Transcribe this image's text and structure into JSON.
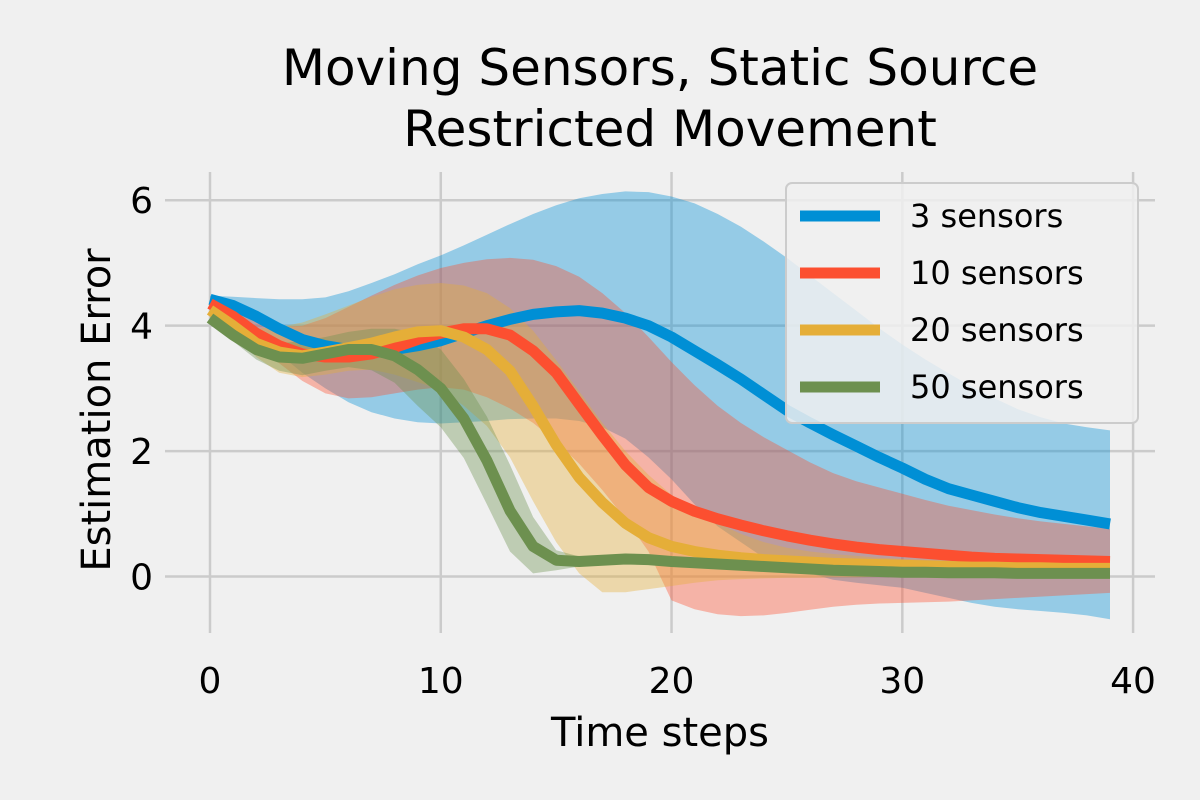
{
  "chart_data": {
    "type": "line",
    "title_lines": [
      "Moving Sensors, Static Source",
      "Restricted Movement"
    ],
    "xlabel": "Time steps",
    "ylabel": "Estimation Error",
    "xlim": [
      -1.95,
      40.95
    ],
    "ylim": [
      -0.9,
      6.45
    ],
    "xticks": [
      0,
      10,
      20,
      30,
      40
    ],
    "yticks": [
      0,
      2,
      4,
      6
    ],
    "grid": true,
    "legend_position": "top-right",
    "x": [
      0,
      1,
      2,
      3,
      4,
      5,
      6,
      7,
      8,
      9,
      10,
      11,
      12,
      13,
      14,
      15,
      16,
      17,
      18,
      19,
      20,
      21,
      22,
      23,
      24,
      25,
      26,
      27,
      28,
      29,
      30,
      31,
      32,
      33,
      34,
      35,
      36,
      37,
      38,
      39
    ],
    "series": [
      {
        "name": "3 sensors",
        "color": "#008fd5",
        "mean": [
          4.42,
          4.32,
          4.15,
          3.95,
          3.78,
          3.68,
          3.62,
          3.6,
          3.62,
          3.68,
          3.76,
          3.88,
          4.0,
          4.1,
          4.18,
          4.22,
          4.24,
          4.2,
          4.12,
          4.0,
          3.82,
          3.6,
          3.38,
          3.15,
          2.9,
          2.65,
          2.45,
          2.26,
          2.08,
          1.9,
          1.73,
          1.55,
          1.4,
          1.3,
          1.2,
          1.1,
          1.02,
          0.96,
          0.9,
          0.84
        ],
        "upper": [
          4.48,
          4.46,
          4.44,
          4.42,
          4.42,
          4.45,
          4.55,
          4.68,
          4.82,
          4.98,
          5.12,
          5.28,
          5.45,
          5.62,
          5.78,
          5.92,
          6.03,
          6.1,
          6.14,
          6.13,
          6.06,
          5.95,
          5.78,
          5.58,
          5.34,
          5.08,
          4.8,
          4.52,
          4.24,
          3.96,
          3.7,
          3.46,
          3.24,
          3.03,
          2.84,
          2.67,
          2.54,
          2.44,
          2.38,
          2.33
        ],
        "lower": [
          4.36,
          4.18,
          3.88,
          3.55,
          3.25,
          3.0,
          2.78,
          2.62,
          2.52,
          2.46,
          2.44,
          2.46,
          2.48,
          2.51,
          2.52,
          2.52,
          2.48,
          2.38,
          2.2,
          1.9,
          1.55,
          1.15,
          0.8,
          0.55,
          0.3,
          0.15,
          0.05,
          -0.05,
          -0.1,
          -0.14,
          -0.18,
          -0.26,
          -0.34,
          -0.42,
          -0.48,
          -0.52,
          -0.55,
          -0.58,
          -0.62,
          -0.68
        ]
      },
      {
        "name": "10 sensors",
        "color": "#fc4f30",
        "mean": [
          4.35,
          4.15,
          3.88,
          3.68,
          3.55,
          3.5,
          3.5,
          3.55,
          3.65,
          3.78,
          3.88,
          3.95,
          3.95,
          3.85,
          3.6,
          3.25,
          2.75,
          2.25,
          1.78,
          1.42,
          1.2,
          1.04,
          0.92,
          0.82,
          0.73,
          0.65,
          0.58,
          0.52,
          0.47,
          0.43,
          0.4,
          0.37,
          0.34,
          0.31,
          0.29,
          0.28,
          0.27,
          0.26,
          0.25,
          0.24
        ],
        "upper": [
          4.4,
          4.25,
          4.08,
          3.98,
          4.0,
          4.12,
          4.3,
          4.48,
          4.65,
          4.8,
          4.92,
          5.0,
          5.06,
          5.08,
          5.05,
          4.95,
          4.78,
          4.52,
          4.2,
          3.82,
          3.42,
          3.05,
          2.72,
          2.45,
          2.22,
          2.02,
          1.82,
          1.65,
          1.52,
          1.42,
          1.32,
          1.22,
          1.13,
          1.06,
          0.99,
          0.93,
          0.88,
          0.84,
          0.8,
          0.76
        ],
        "lower": [
          4.3,
          4.05,
          3.7,
          3.4,
          3.12,
          2.92,
          2.84,
          2.86,
          2.92,
          2.98,
          3.02,
          2.98,
          2.86,
          2.68,
          2.45,
          2.15,
          1.8,
          1.38,
          0.92,
          0.4,
          -0.38,
          -0.52,
          -0.6,
          -0.63,
          -0.62,
          -0.58,
          -0.53,
          -0.48,
          -0.45,
          -0.43,
          -0.42,
          -0.41,
          -0.4,
          -0.38,
          -0.36,
          -0.34,
          -0.32,
          -0.3,
          -0.28,
          -0.26
        ]
      },
      {
        "name": "20 sensors",
        "color": "#e5ae38",
        "mean": [
          4.25,
          4.0,
          3.72,
          3.58,
          3.52,
          3.58,
          3.65,
          3.72,
          3.82,
          3.9,
          3.92,
          3.82,
          3.62,
          3.28,
          2.72,
          2.1,
          1.58,
          1.18,
          0.85,
          0.62,
          0.48,
          0.4,
          0.34,
          0.3,
          0.27,
          0.25,
          0.23,
          0.21,
          0.2,
          0.19,
          0.18,
          0.17,
          0.16,
          0.15,
          0.15,
          0.14,
          0.14,
          0.13,
          0.13,
          0.13
        ],
        "upper": [
          4.3,
          4.1,
          3.95,
          3.98,
          4.05,
          4.18,
          4.32,
          4.46,
          4.58,
          4.65,
          4.68,
          4.64,
          4.52,
          4.28,
          3.92,
          3.45,
          2.95,
          2.45,
          2.0,
          1.62,
          1.3,
          1.05,
          0.85,
          0.68,
          0.55,
          0.46,
          0.4,
          0.36,
          0.33,
          0.3,
          0.28,
          0.27,
          0.26,
          0.25,
          0.24,
          0.23,
          0.22,
          0.21,
          0.2,
          0.2
        ],
        "lower": [
          4.2,
          3.9,
          3.5,
          3.25,
          3.18,
          3.22,
          3.28,
          3.3,
          3.22,
          3.1,
          2.98,
          2.72,
          2.4,
          1.9,
          1.2,
          0.55,
          0.05,
          -0.25,
          -0.25,
          -0.2,
          -0.15,
          -0.1,
          -0.06,
          -0.04,
          -0.03,
          -0.02,
          -0.02,
          -0.01,
          -0.01,
          0.0,
          0.0,
          0.01,
          0.01,
          0.02,
          0.02,
          0.03,
          0.03,
          0.04,
          0.04,
          0.05
        ]
      },
      {
        "name": "50 sensors",
        "color": "#6d904f",
        "mean": [
          4.12,
          3.85,
          3.62,
          3.5,
          3.48,
          3.55,
          3.62,
          3.62,
          3.52,
          3.3,
          3.0,
          2.52,
          1.85,
          1.05,
          0.48,
          0.26,
          0.24,
          0.26,
          0.28,
          0.27,
          0.24,
          0.22,
          0.2,
          0.18,
          0.16,
          0.14,
          0.12,
          0.1,
          0.09,
          0.08,
          0.07,
          0.07,
          0.06,
          0.06,
          0.06,
          0.05,
          0.05,
          0.05,
          0.05,
          0.05
        ],
        "upper": [
          4.15,
          3.95,
          3.78,
          3.72,
          3.75,
          3.82,
          3.9,
          3.95,
          3.95,
          3.88,
          3.62,
          3.15,
          2.55,
          1.78,
          0.95,
          0.42,
          0.32,
          0.32,
          0.32,
          0.3,
          0.27,
          0.25,
          0.23,
          0.21,
          0.19,
          0.17,
          0.15,
          0.13,
          0.12,
          0.11,
          0.1,
          0.09,
          0.09,
          0.08,
          0.08,
          0.08,
          0.07,
          0.07,
          0.07,
          0.07
        ],
        "lower": [
          4.09,
          3.75,
          3.46,
          3.28,
          3.21,
          3.28,
          3.34,
          3.29,
          3.09,
          2.72,
          2.38,
          1.89,
          1.15,
          0.4,
          0.05,
          0.1,
          0.16,
          0.2,
          0.24,
          0.24,
          0.21,
          0.19,
          0.17,
          0.15,
          0.13,
          0.11,
          0.09,
          0.07,
          0.06,
          0.05,
          0.04,
          0.05,
          0.03,
          0.04,
          0.04,
          0.02,
          0.03,
          0.03,
          0.03,
          0.03
        ]
      }
    ]
  }
}
